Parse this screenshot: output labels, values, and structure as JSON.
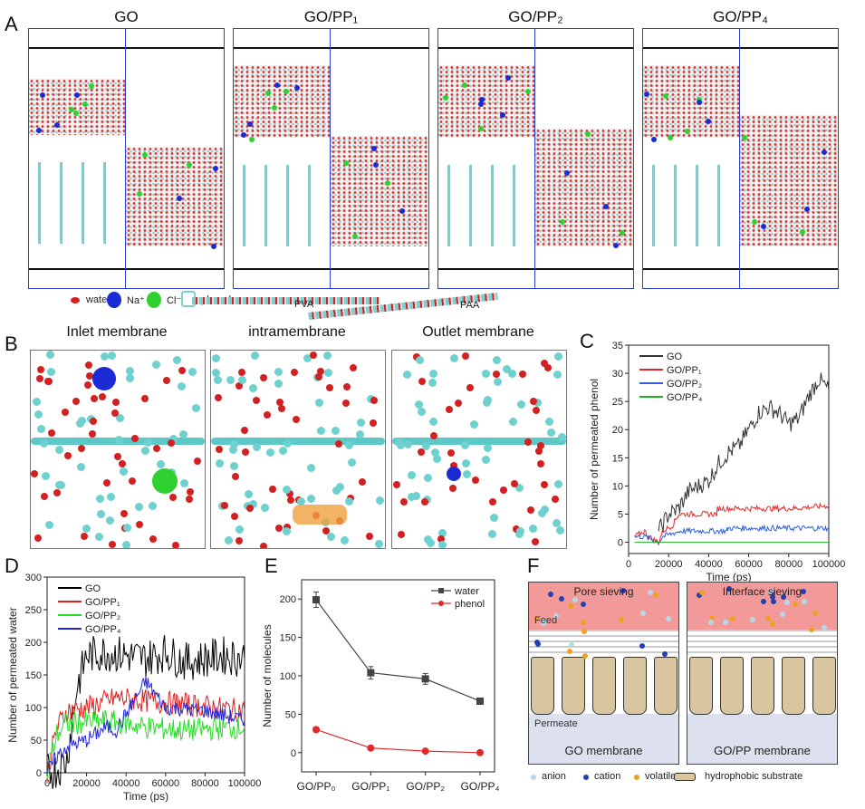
{
  "panel_labels": {
    "a": "A",
    "b": "B",
    "c": "C",
    "d": "D",
    "e": "E",
    "f": "F"
  },
  "panel_a": {
    "titles": [
      "GO",
      "GO/PP₁",
      "GO/PP₂",
      "GO/PP₄"
    ],
    "legend": {
      "water": "water",
      "na": "Na⁺",
      "cl": "Cl⁻",
      "phenol": "phenol",
      "pva": "PVA",
      "paa": "PAA"
    },
    "colors": {
      "frame": "#2b3fd1",
      "na": "#1a2bd6",
      "cl": "#2fd12f",
      "oxygen": "#d32020",
      "carbon": "#7fd0d0"
    }
  },
  "panel_b": {
    "titles": [
      "Inlet membrane",
      "intramembrane",
      "Outlet membrane"
    ]
  },
  "chart_data": [
    {
      "id": "C",
      "type": "line",
      "title": "",
      "xlabel": "Time (ps)",
      "ylabel": "Number of permeated phenol",
      "xlim": [
        0,
        100000
      ],
      "ylim": [
        -2,
        35
      ],
      "xticks": [
        0,
        20000,
        40000,
        60000,
        80000,
        100000
      ],
      "yticks": [
        0,
        5,
        10,
        15,
        20,
        25,
        30,
        35
      ],
      "legend": "top-left",
      "series": [
        {
          "name": "GO",
          "color": "#333333",
          "x": [
            15000,
            20000,
            25000,
            30000,
            35000,
            40000,
            45000,
            50000,
            55000,
            60000,
            65000,
            70000,
            75000,
            80000,
            85000,
            90000,
            95000,
            100000
          ],
          "y": [
            2,
            5,
            6,
            9,
            10,
            11,
            14,
            16,
            17,
            20,
            23,
            24,
            23,
            21,
            22,
            26,
            29,
            27
          ]
        },
        {
          "name": "GO/PP₁",
          "color": "#e02a2a",
          "x": [
            3000,
            8000,
            10000,
            15000,
            17000,
            22000,
            25000,
            44000,
            44500,
            82000,
            100000
          ],
          "y": [
            1,
            2,
            1,
            0,
            2,
            3,
            5,
            5,
            6,
            6,
            6.5
          ]
        },
        {
          "name": "GO/PP₂",
          "color": "#2f5fd8",
          "x": [
            3000,
            8000,
            15000,
            17000,
            26000,
            49000,
            49500,
            77000,
            78000,
            100000
          ],
          "y": [
            1,
            1,
            0,
            1,
            2,
            2,
            2.5,
            2.5,
            2.5,
            2.5
          ]
        },
        {
          "name": "GO/PP₄",
          "color": "#20b020",
          "x": [
            3000,
            100000
          ],
          "y": [
            0,
            0
          ]
        }
      ]
    },
    {
      "id": "D",
      "type": "line",
      "title": "",
      "xlabel": "Time (ps)",
      "ylabel": "Number of permeated water",
      "xlim": [
        0,
        100000
      ],
      "ylim": [
        0,
        300
      ],
      "xticks": [
        0,
        20000,
        40000,
        60000,
        80000,
        100000
      ],
      "yticks": [
        0,
        50,
        100,
        150,
        200,
        250,
        300
      ],
      "legend": "top-left",
      "series": [
        {
          "name": "GO",
          "color": "#000000",
          "x": [
            0,
            5000,
            10000,
            15000,
            20000,
            30000,
            40000,
            50000,
            60000,
            70000,
            80000,
            90000,
            100000
          ],
          "y": [
            0,
            5,
            20,
            130,
            180,
            185,
            180,
            175,
            185,
            170,
            175,
            180,
            175
          ]
        },
        {
          "name": "GO/PP₁",
          "color": "#e02020",
          "x": [
            0,
            5000,
            10000,
            20000,
            35000,
            50000,
            70000,
            100000
          ],
          "y": [
            0,
            70,
            95,
            100,
            115,
            110,
            105,
            95
          ]
        },
        {
          "name": "GO/PP₂",
          "color": "#22dd22",
          "x": [
            0,
            5000,
            10000,
            30000,
            50000,
            70000,
            100000
          ],
          "y": [
            0,
            60,
            75,
            80,
            70,
            65,
            70
          ]
        },
        {
          "name": "GO/PP₄",
          "color": "#2222dd",
          "x": [
            0,
            5000,
            10000,
            20000,
            30000,
            35000,
            50000,
            60000,
            80000,
            100000
          ],
          "y": [
            0,
            25,
            40,
            50,
            70,
            65,
            140,
            100,
            95,
            80
          ]
        }
      ]
    },
    {
      "id": "E",
      "type": "line",
      "title": "",
      "xlabel": "",
      "ylabel": "Number of molecules",
      "categories": [
        "GO/PP₀",
        "GO/PP₁",
        "GO/PP₂",
        "GO/PP₄"
      ],
      "ylim": [
        -25,
        225
      ],
      "yticks": [
        0,
        50,
        100,
        150,
        200
      ],
      "legend": "top-right",
      "series": [
        {
          "name": "water",
          "color": "#444444",
          "marker": "square",
          "values": [
            199,
            104,
            96,
            67
          ],
          "errors": [
            10,
            8,
            7,
            2
          ]
        },
        {
          "name": "phenol",
          "color": "#e02a2a",
          "marker": "circle",
          "values": [
            30,
            6,
            2,
            0
          ],
          "errors": [
            3,
            1,
            1,
            0
          ]
        }
      ]
    }
  ],
  "panel_f": {
    "boxes": [
      {
        "title": "Pore sieving",
        "caption": "GO membrane",
        "feed": "Feed",
        "permeate": "Permeate"
      },
      {
        "title": "Interface sieving",
        "caption": "GO/PP membrane"
      }
    ],
    "legend": [
      "anion",
      "cation",
      "volatiles",
      "hydrophobic substrate"
    ],
    "colors": {
      "feed": "#f29a9a",
      "permeate": "#dde0ee",
      "substrate": "#d9c5a0",
      "anion": "#b8d8e8",
      "cation": "#2240b0",
      "volatile": "#f0a020"
    }
  }
}
